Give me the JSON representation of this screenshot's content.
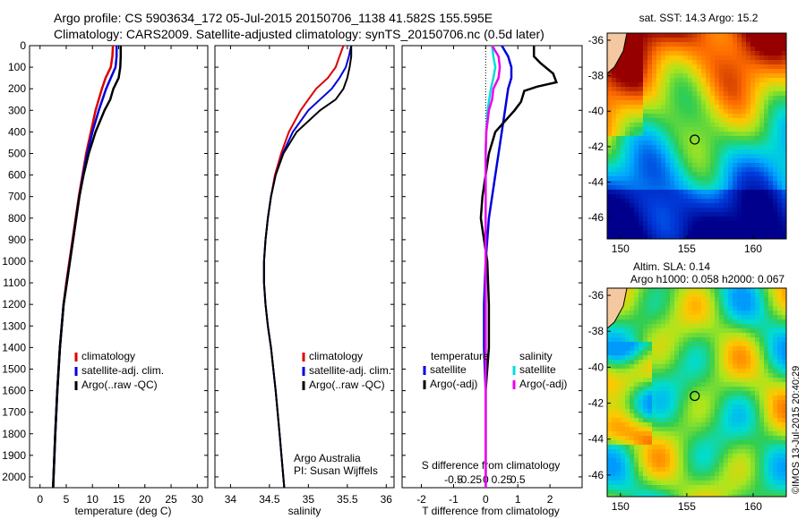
{
  "header": {
    "line1": "Argo profile: CS 5903634_172 05-Jul-2015 20150706_1138 41.582S 155.595E",
    "line2": "Climatology: CARS2009. Satellite-adjusted climatology: synTS_20150706.nc (0.5d later)"
  },
  "colors": {
    "climatology": "#dd0000",
    "satellite": "#0000dd",
    "argo": "#000000",
    "satellite_s": "#00dddd",
    "argo_s": "#ee00ee"
  },
  "credit": "©IMOS 13-Jul-2015 20:40:29",
  "chart_data": [
    {
      "type": "line",
      "xlabel": "temperature (deg C)",
      "ylabel": "",
      "xlim": [
        -2,
        32
      ],
      "ylim": [
        2050,
        0
      ],
      "xticks": [
        0,
        5,
        10,
        15,
        20,
        25,
        30
      ],
      "yticks": [
        0,
        100,
        200,
        300,
        400,
        500,
        600,
        700,
        800,
        900,
        1000,
        1100,
        1200,
        1300,
        1400,
        1500,
        1600,
        1700,
        1800,
        1900,
        2000
      ],
      "legend": {
        "position": "lower-right",
        "entries": [
          "climatology",
          "satellite-adj. clim.",
          "Argo(..raw -QC)"
        ]
      },
      "series": [
        {
          "name": "climatology",
          "color": "#dd0000",
          "depth": [
            0,
            50,
            100,
            150,
            200,
            300,
            400,
            500,
            600,
            700,
            800,
            900,
            1000,
            1100,
            1200,
            1400,
            1600,
            1800,
            2050
          ],
          "values": [
            13.9,
            13.8,
            13.5,
            12.5,
            11.8,
            10.6,
            9.7,
            8.8,
            8.1,
            7.4,
            6.8,
            6.2,
            5.6,
            5.0,
            4.5,
            3.8,
            3.3,
            2.9,
            2.5
          ]
        },
        {
          "name": "satellite-adj. clim.",
          "color": "#0000dd",
          "depth": [
            0,
            50,
            100,
            150,
            200,
            300,
            400,
            500,
            600,
            700,
            800,
            900,
            1000,
            1100,
            1200,
            1400,
            1600,
            1800,
            2050
          ],
          "values": [
            14.6,
            14.6,
            14.4,
            13.5,
            12.6,
            11.2,
            10.0,
            9.0,
            8.2,
            7.5,
            6.9,
            6.3,
            5.7,
            5.1,
            4.5,
            3.8,
            3.3,
            2.9,
            2.5
          ]
        },
        {
          "name": "Argo(..raw -QC)",
          "color": "#000000",
          "depth": [
            0,
            50,
            100,
            150,
            200,
            250,
            300,
            400,
            500,
            600,
            700,
            800,
            900,
            1000,
            1100,
            1200,
            1400,
            1600,
            1800,
            2050
          ],
          "values": [
            15.4,
            15.4,
            15.3,
            15.0,
            14.0,
            13.4,
            12.3,
            10.6,
            9.3,
            8.3,
            7.5,
            6.9,
            6.3,
            5.7,
            5.1,
            4.5,
            3.8,
            3.3,
            2.9,
            2.5
          ]
        }
      ]
    },
    {
      "type": "line",
      "xlabel": "salinity",
      "ylabel": "",
      "xlim": [
        33.8,
        36.1
      ],
      "ylim": [
        2050,
        0
      ],
      "xticks": [
        34,
        34.5,
        35,
        35.5,
        36
      ],
      "xticklabels": [
        "34",
        "34.5",
        "35",
        "35.5",
        "36"
      ],
      "legend": {
        "position": "lower-right",
        "entries": [
          "climatology",
          "satellite-adj. clim.",
          "Argo(..raw -QC)"
        ]
      },
      "annotation": [
        "Argo Australia",
        "PI: Susan Wijffels"
      ],
      "series": [
        {
          "name": "climatology",
          "color": "#dd0000",
          "depth": [
            0,
            50,
            100,
            150,
            200,
            250,
            300,
            400,
            500,
            600,
            700,
            800,
            900,
            1000,
            1100,
            1200,
            1300,
            1400,
            1500,
            1600,
            1800,
            2050
          ],
          "values": [
            35.45,
            35.4,
            35.35,
            35.25,
            35.1,
            35.0,
            34.9,
            34.75,
            34.65,
            34.57,
            34.52,
            34.48,
            34.45,
            34.43,
            34.43,
            34.45,
            34.48,
            34.52,
            34.55,
            34.58,
            34.63,
            34.69
          ]
        },
        {
          "name": "satellite-adj. clim.",
          "color": "#0000dd",
          "depth": [
            0,
            50,
            100,
            150,
            200,
            250,
            300,
            400,
            500,
            600,
            700,
            800,
            900,
            1000,
            1100,
            1200,
            1300,
            1400,
            1500,
            1600,
            1800,
            2050
          ],
          "values": [
            35.55,
            35.52,
            35.48,
            35.4,
            35.3,
            35.15,
            35.0,
            34.8,
            34.67,
            34.58,
            34.52,
            34.48,
            34.45,
            34.43,
            34.43,
            34.45,
            34.48,
            34.52,
            34.55,
            34.58,
            34.63,
            34.69
          ]
        },
        {
          "name": "Argo(..raw -QC)",
          "color": "#000000",
          "depth": [
            0,
            50,
            100,
            150,
            200,
            250,
            300,
            400,
            500,
            600,
            700,
            800,
            900,
            1000,
            1100,
            1200,
            1300,
            1400,
            1500,
            1600,
            1800,
            2050
          ],
          "values": [
            35.55,
            35.55,
            35.53,
            35.5,
            35.45,
            35.35,
            35.15,
            34.85,
            34.68,
            34.58,
            34.52,
            34.48,
            34.45,
            34.43,
            34.43,
            34.45,
            34.48,
            34.52,
            34.55,
            34.58,
            34.63,
            34.69
          ]
        }
      ]
    },
    {
      "type": "line",
      "xlabel": "T difference from climatology",
      "xlabel2": "S difference from climatology",
      "xlim": [
        -2.6,
        3.0
      ],
      "ylim": [
        2050,
        0
      ],
      "xticks": [
        -2,
        -1,
        0,
        1,
        2
      ],
      "xticks_s": [
        -0.5,
        -0.25,
        0,
        0.25,
        0.5
      ],
      "xticklabels_s": [
        "-0.5",
        "-0.25",
        "0",
        "0.25",
        "0.5"
      ],
      "legend": {
        "position": "lower-middle",
        "temperature_header": "temperature",
        "salinity_header": "salinity",
        "entries_t": [
          "satellite",
          "Argo(-adj)"
        ],
        "entries_s": [
          "satellite",
          "Argo(-adj)"
        ]
      },
      "series": [
        {
          "name": "temperature satellite",
          "color": "#0000dd",
          "depth": [
            0,
            50,
            100,
            150,
            200,
            300,
            400,
            500,
            600,
            700,
            800,
            1000,
            1200,
            1400,
            1600,
            1800,
            2050
          ],
          "values": [
            0.5,
            0.7,
            0.8,
            0.8,
            0.7,
            0.6,
            0.5,
            0.4,
            0.3,
            0.2,
            0.1,
            0.0,
            -0.05,
            -0.05,
            0.0,
            0.0,
            0.0
          ]
        },
        {
          "name": "temperature Argo(-adj)",
          "color": "#000000",
          "depth": [
            0,
            50,
            80,
            130,
            170,
            190,
            210,
            260,
            300,
            350,
            400,
            500,
            600,
            700,
            800,
            900,
            1000,
            1200,
            1400,
            1600,
            1800,
            2050
          ],
          "values": [
            1.5,
            1.5,
            1.7,
            2.1,
            2.2,
            1.6,
            1.2,
            1.1,
            0.9,
            0.6,
            0.3,
            0.1,
            0.0,
            -0.1,
            -0.15,
            -0.05,
            0.05,
            0.1,
            0.1,
            0.0,
            0.0,
            0.0
          ]
        },
        {
          "name": "salinity satellite",
          "color": "#00dddd",
          "depth": [
            0,
            50,
            100,
            150,
            200,
            300,
            400,
            500,
            700,
            900,
            1100,
            1300,
            1500,
            1700,
            2050
          ],
          "values": [
            0.1,
            0.12,
            0.15,
            0.12,
            0.08,
            0.03,
            0.01,
            0.0,
            0.0,
            0.0,
            0.0,
            0.0,
            0.0,
            0.0,
            0.0
          ]
        },
        {
          "name": "salinity Argo(-adj)",
          "color": "#ee00ee",
          "depth": [
            0,
            50,
            100,
            150,
            200,
            250,
            300,
            350,
            400,
            500,
            600,
            800,
            1000,
            1200,
            1400,
            1600,
            1800,
            2050
          ],
          "values": [
            0.1,
            0.2,
            0.22,
            0.2,
            0.12,
            0.1,
            0.05,
            0.03,
            0.01,
            0.0,
            0.0,
            0.0,
            0.0,
            0.0,
            0.0,
            0.0,
            0.0,
            0.0
          ]
        }
      ]
    },
    {
      "type": "heatmap",
      "title": "sat. SST: 14.3 Argo: 15.2",
      "xlim": [
        149,
        162.5
      ],
      "ylim": [
        -47.2,
        -35.6
      ],
      "xticks": [
        150,
        155,
        160
      ],
      "yticks": [
        -36,
        -38,
        -40,
        -42,
        -44,
        -46
      ],
      "marker": {
        "lon": 155.6,
        "lat": -41.6
      }
    },
    {
      "type": "heatmap",
      "title": "Altim. SLA: 0.14",
      "subtitle": "Argo h1000: 0.058 h2000: 0.067",
      "xlim": [
        149,
        162.5
      ],
      "ylim": [
        -47.2,
        -35.6
      ],
      "xticks": [
        150,
        155,
        160
      ],
      "yticks": [
        -36,
        -38,
        -40,
        -42,
        -44,
        -46
      ],
      "marker": {
        "lon": 155.6,
        "lat": -41.6
      }
    }
  ]
}
